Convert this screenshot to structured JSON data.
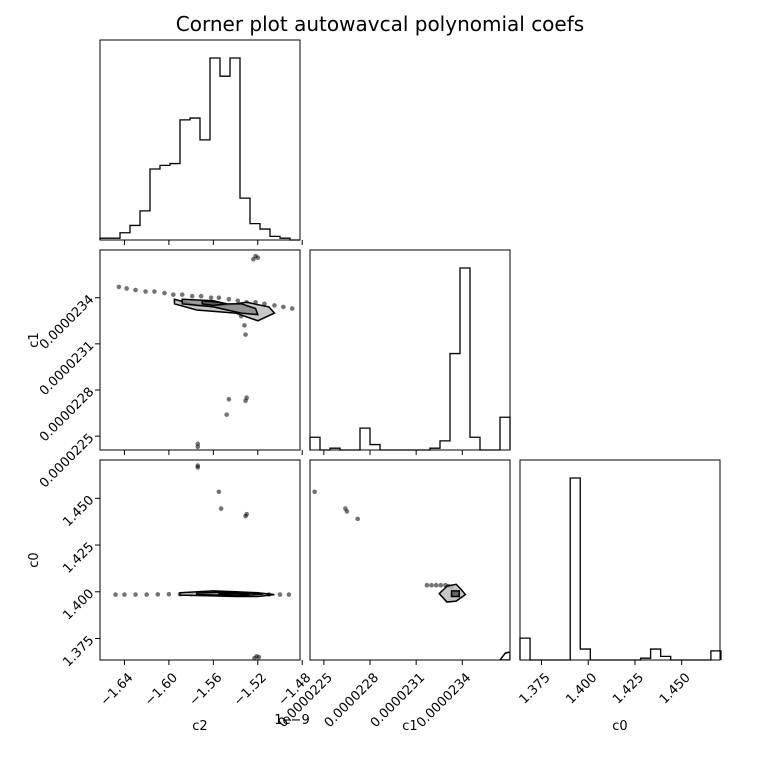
{
  "title": "Corner plot autowavcal polynomial coefs",
  "chart_data": {
    "type": "corner",
    "parameters": [
      "c2",
      "c1",
      "c0"
    ],
    "axes": {
      "c2": {
        "label": "c2",
        "offset_text": "1e−9",
        "ticks": [
          -1.64,
          -1.6,
          -1.56,
          -1.52,
          -1.48
        ],
        "tick_labels": [
          "−1.64",
          "−1.60",
          "−1.56",
          "−1.52",
          "−1.48"
        ],
        "range": [
          -1.662,
          -1.482
        ]
      },
      "c1": {
        "label": "c1",
        "ticks": [
          2.25e-05,
          2.28e-05,
          2.31e-05,
          2.34e-05
        ],
        "tick_labels": [
          "0.0000225",
          "0.0000228",
          "0.0000231",
          "0.0000234"
        ],
        "range": [
          2.241e-05,
          2.371e-05
        ]
      },
      "c0": {
        "label": "c0",
        "ticks": [
          1.375,
          1.4,
          1.425,
          1.45
        ],
        "tick_labels": [
          "1.375",
          "1.400",
          "1.425",
          "1.450"
        ],
        "range": [
          1.3635,
          1.4705
        ]
      }
    },
    "histograms": [
      {
        "param": "c2",
        "edges": [
          -1.662,
          -1.653,
          -1.644,
          -1.635,
          -1.626,
          -1.617,
          -1.608,
          -1.599,
          -1.59,
          -1.581,
          -1.572,
          -1.563,
          -1.554,
          -1.545,
          -1.536,
          -1.527,
          -1.518,
          -1.509,
          -1.5,
          -1.491,
          -1.482
        ],
        "counts": [
          1,
          1,
          4,
          8,
          16,
          39,
          41,
          42,
          66,
          67,
          55,
          100,
          90,
          100,
          23,
          9,
          6,
          2,
          1,
          0
        ]
      },
      {
        "param": "c1",
        "edges": [
          2.241e-05,
          2.2475e-05,
          2.254e-05,
          2.2605e-05,
          2.267e-05,
          2.2735e-05,
          2.28e-05,
          2.2865e-05,
          2.293e-05,
          2.2995e-05,
          2.306e-05,
          2.3125e-05,
          2.319e-05,
          2.3255e-05,
          2.332e-05,
          2.3385e-05,
          2.345e-05,
          2.3515e-05,
          2.358e-05,
          2.3645e-05,
          2.371e-05
        ],
        "counts": [
          7,
          0,
          1,
          0,
          0,
          12,
          3,
          0,
          0,
          0,
          0,
          0,
          1,
          5,
          53,
          100,
          7,
          0,
          0,
          18
        ]
      },
      {
        "param": "c0",
        "edges": [
          1.3635,
          1.368875,
          1.37425,
          1.379625,
          1.385,
          1.390375,
          1.39575,
          1.401125,
          1.4065,
          1.411875,
          1.41725,
          1.422625,
          1.428,
          1.433375,
          1.43875,
          1.444125,
          1.4495,
          1.454875,
          1.46025,
          1.465625,
          1.471
        ],
        "counts": [
          12,
          0,
          0,
          0,
          0,
          100,
          6,
          0,
          0,
          0,
          0,
          0,
          1,
          6,
          2,
          0,
          0,
          0,
          0,
          5
        ]
      }
    ],
    "scatter_panels": [
      {
        "x": "c2",
        "y": "c1",
        "points": [
          [
            -1.645,
            2.347e-05
          ],
          [
            -1.638,
            2.346e-05
          ],
          [
            -1.63,
            2.345e-05
          ],
          [
            -1.621,
            2.344e-05
          ],
          [
            -1.613,
            2.344e-05
          ],
          [
            -1.604,
            2.343e-05
          ],
          [
            -1.596,
            2.342e-05
          ],
          [
            -1.588,
            2.342e-05
          ],
          [
            -1.579,
            2.341e-05
          ],
          [
            -1.571,
            2.341e-05
          ],
          [
            -1.562,
            2.34e-05
          ],
          [
            -1.555,
            2.34e-05
          ],
          [
            -1.546,
            2.339e-05
          ],
          [
            -1.538,
            2.338e-05
          ],
          [
            -1.53,
            2.337e-05
          ],
          [
            -1.522,
            2.337e-05
          ],
          [
            -1.514,
            2.336e-05
          ],
          [
            -1.505,
            2.335e-05
          ],
          [
            -1.497,
            2.334e-05
          ],
          [
            -1.489,
            2.333e-05
          ],
          [
            -1.535,
            2.328e-05
          ],
          [
            -1.532,
            2.322e-05
          ],
          [
            -1.531,
            2.316e-05
          ],
          [
            -1.531,
            2.273e-05
          ],
          [
            -1.53,
            2.275e-05
          ],
          [
            -1.546,
            2.274e-05
          ],
          [
            -1.548,
            2.264e-05
          ],
          [
            -1.574,
            2.245e-05
          ],
          [
            -1.574,
            2.243e-05
          ],
          [
            -1.524,
            2.365e-05
          ],
          [
            -1.522,
            2.367e-05
          ],
          [
            -1.52,
            2.366e-05
          ]
        ],
        "contours": [
          {
            "level": "outer",
            "polygon": [
              [
                -1.595,
                2.339e-05
              ],
              [
                -1.575,
                2.335e-05
              ],
              [
                -1.55,
                2.335e-05
              ],
              [
                -1.53,
                2.337e-05
              ],
              [
                -1.51,
                2.334e-05
              ],
              [
                -1.505,
                2.33e-05
              ],
              [
                -1.52,
                2.325e-05
              ],
              [
                -1.54,
                2.33e-05
              ],
              [
                -1.575,
                2.332e-05
              ],
              [
                -1.595,
                2.336e-05
              ]
            ]
          },
          {
            "level": "middle",
            "polygon": [
              [
                -1.588,
                2.339e-05
              ],
              [
                -1.56,
                2.338e-05
              ],
              [
                -1.548,
                2.336e-05
              ],
              [
                -1.535,
                2.336e-05
              ],
              [
                -1.522,
                2.333e-05
              ],
              [
                -1.52,
                2.329e-05
              ],
              [
                -1.535,
                2.33e-05
              ],
              [
                -1.56,
                2.334e-05
              ],
              [
                -1.588,
                2.336e-05
              ]
            ]
          },
          {
            "level": "inner",
            "polygon": [
              [
                -1.57,
                2.338e-05
              ],
              [
                -1.555,
                2.337e-05
              ],
              [
                -1.548,
                2.336e-05
              ],
              [
                -1.56,
                2.335e-05
              ],
              [
                -1.57,
                2.336e-05
              ]
            ]
          }
        ]
      },
      {
        "x": "c2",
        "y": "c0",
        "points": [
          [
            -1.648,
            1.3985
          ],
          [
            -1.64,
            1.3985
          ],
          [
            -1.63,
            1.3985
          ],
          [
            -1.62,
            1.3985
          ],
          [
            -1.61,
            1.3986
          ],
          [
            -1.6,
            1.3987
          ],
          [
            -1.59,
            1.3987
          ],
          [
            -1.58,
            1.3988
          ],
          [
            -1.57,
            1.3988
          ],
          [
            -1.56,
            1.3988
          ],
          [
            -1.55,
            1.3988
          ],
          [
            -1.54,
            1.3988
          ],
          [
            -1.53,
            1.3987
          ],
          [
            -1.52,
            1.3986
          ],
          [
            -1.51,
            1.3985
          ],
          [
            -1.5,
            1.3985
          ],
          [
            -1.492,
            1.3985
          ],
          [
            -1.555,
            1.4535
          ],
          [
            -1.553,
            1.4445
          ],
          [
            -1.531,
            1.4405
          ],
          [
            -1.53,
            1.4415
          ],
          [
            -1.574,
            1.4665
          ],
          [
            -1.574,
            1.4675
          ],
          [
            -1.521,
            1.3655
          ],
          [
            -1.523,
            1.3645
          ],
          [
            -1.519,
            1.365
          ]
        ],
        "contours": [
          {
            "level": "outer",
            "polygon": [
              [
                -1.59,
                1.3995
              ],
              [
                -1.56,
                1.4005
              ],
              [
                -1.54,
                1.4
              ],
              [
                -1.52,
                1.3995
              ],
              [
                -1.505,
                1.3985
              ],
              [
                -1.52,
                1.3975
              ],
              [
                -1.54,
                1.3975
              ],
              [
                -1.56,
                1.3978
              ],
              [
                -1.59,
                1.3982
              ]
            ]
          },
          {
            "level": "middle",
            "polygon": [
              [
                -1.575,
                1.3993
              ],
              [
                -1.555,
                1.3998
              ],
              [
                -1.535,
                1.3996
              ],
              [
                -1.515,
                1.3988
              ],
              [
                -1.535,
                1.398
              ],
              [
                -1.555,
                1.3982
              ],
              [
                -1.575,
                1.3985
              ]
            ]
          },
          {
            "level": "inner",
            "polygon": [
              [
                -1.555,
                1.3992
              ],
              [
                -1.54,
                1.3993
              ],
              [
                -1.528,
                1.3988
              ],
              [
                -1.54,
                1.3983
              ],
              [
                -1.555,
                1.3985
              ]
            ]
          }
        ]
      },
      {
        "x": "c1",
        "y": "c0",
        "points": [
          [
            2.244e-05,
            1.4535
          ],
          [
            2.264e-05,
            1.4445
          ],
          [
            2.265e-05,
            1.443
          ],
          [
            2.272e-05,
            1.439
          ],
          [
            2.317e-05,
            1.4035
          ],
          [
            2.32e-05,
            1.4035
          ],
          [
            2.323e-05,
            1.4035
          ],
          [
            2.326e-05,
            1.4035
          ],
          [
            2.329e-05,
            1.4035
          ],
          [
            2.331e-05,
            1.403
          ],
          [
            2.333e-05,
            1.4025
          ]
        ],
        "contours": [
          {
            "level": "outer",
            "polygon": [
              [
                2.33e-05,
                1.403
              ],
              [
                2.336e-05,
                1.404
              ],
              [
                2.339e-05,
                1.4015
              ],
              [
                2.342e-05,
                1.3985
              ],
              [
                2.336e-05,
                1.395
              ],
              [
                2.33e-05,
                1.3945
              ],
              [
                2.325e-05,
                1.399
              ]
            ]
          },
          {
            "level": "inner",
            "polygon": [
              [
                2.333e-05,
                1.4005
              ],
              [
                2.338e-05,
                1.4005
              ],
              [
                2.338e-05,
                1.3975
              ],
              [
                2.333e-05,
                1.3975
              ]
            ]
          },
          {
            "level": "corner",
            "polygon": [
              [
                2.3645e-05,
                1.3635
              ],
              [
                2.368e-05,
                1.3672
              ],
              [
                2.371e-05,
                1.3678
              ],
              [
                2.371e-05,
                1.3635
              ]
            ]
          }
        ]
      }
    ],
    "grid": false
  }
}
